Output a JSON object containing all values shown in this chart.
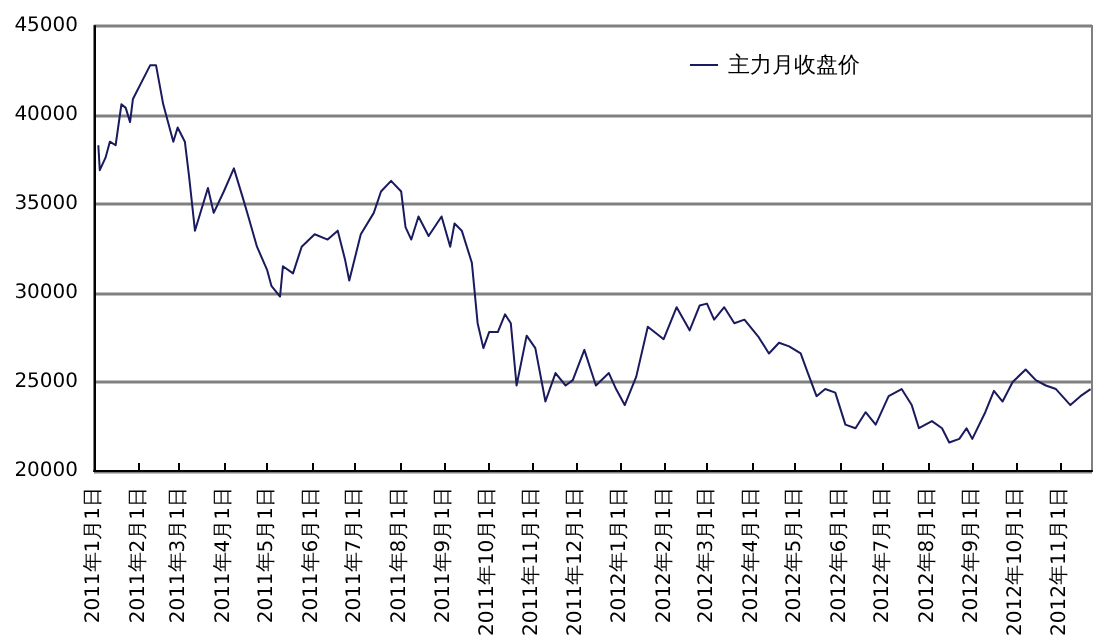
{
  "chart_data": {
    "type": "line",
    "legend": "top right",
    "grid": "y",
    "marker": "none",
    "line_style": "solid",
    "xlim": [
      "2011-01-01",
      "2012-11-23"
    ],
    "ylim": [
      20000,
      45000
    ],
    "yticks": [
      20000,
      25000,
      30000,
      35000,
      40000,
      45000
    ],
    "xticks": [
      {
        "value": "2011-01-01",
        "label": "2011年1月1日"
      },
      {
        "value": "2011-02-01",
        "label": "2011年2月1日"
      },
      {
        "value": "2011-03-01",
        "label": "2011年3月1日"
      },
      {
        "value": "2011-04-01",
        "label": "2011年4月1日"
      },
      {
        "value": "2011-05-01",
        "label": "2011年5月1日"
      },
      {
        "value": "2011-06-01",
        "label": "2011年6月1日"
      },
      {
        "value": "2011-07-01",
        "label": "2011年7月1日"
      },
      {
        "value": "2011-08-01",
        "label": "2011年8月1日"
      },
      {
        "value": "2011-09-01",
        "label": "2011年9月1日"
      },
      {
        "value": "2011-10-01",
        "label": "2011年10月1日"
      },
      {
        "value": "2011-11-01",
        "label": "2011年11月1日"
      },
      {
        "value": "2011-12-01",
        "label": "2011年12月1日"
      },
      {
        "value": "2012-01-01",
        "label": "2012年1月1日"
      },
      {
        "value": "2012-02-01",
        "label": "2012年2月1日"
      },
      {
        "value": "2012-03-01",
        "label": "2012年3月1日"
      },
      {
        "value": "2012-04-01",
        "label": "2012年4月1日"
      },
      {
        "value": "2012-05-01",
        "label": "2012年5月1日"
      },
      {
        "value": "2012-06-01",
        "label": "2012年6月1日"
      },
      {
        "value": "2012-07-01",
        "label": "2012年7月1日"
      },
      {
        "value": "2012-08-01",
        "label": "2012年8月1日"
      },
      {
        "value": "2012-09-01",
        "label": "2012年9月1日"
      },
      {
        "value": "2012-10-01",
        "label": "2012年10月1日"
      },
      {
        "value": "2012-11-01",
        "label": "2012年11月1日"
      }
    ],
    "x": [
      "2011-01-04",
      "2011-01-05",
      "2011-01-09",
      "2011-01-12",
      "2011-01-16",
      "2011-01-20",
      "2011-01-23",
      "2011-01-26",
      "2011-01-28",
      "2011-02-09",
      "2011-02-13",
      "2011-02-18",
      "2011-02-25",
      "2011-02-28",
      "2011-03-05",
      "2011-03-08",
      "2011-03-12",
      "2011-03-21",
      "2011-03-25",
      "2011-04-01",
      "2011-04-08",
      "2011-04-14",
      "2011-04-18",
      "2011-04-24",
      "2011-05-01",
      "2011-05-04",
      "2011-05-10",
      "2011-05-12",
      "2011-05-19",
      "2011-05-25",
      "2011-06-03",
      "2011-06-12",
      "2011-06-19",
      "2011-06-24",
      "2011-06-27",
      "2011-07-05",
      "2011-07-14",
      "2011-07-19",
      "2011-07-26",
      "2011-08-02",
      "2011-08-05",
      "2011-08-09",
      "2011-08-14",
      "2011-08-21",
      "2011-08-30",
      "2011-09-05",
      "2011-09-08",
      "2011-09-13",
      "2011-09-20",
      "2011-09-24",
      "2011-09-28",
      "2011-10-02",
      "2011-10-08",
      "2011-10-13",
      "2011-10-17",
      "2011-10-21",
      "2011-10-28",
      "2011-11-03",
      "2011-11-10",
      "2011-11-17",
      "2011-11-24",
      "2011-11-29",
      "2011-12-07",
      "2011-12-15",
      "2011-12-24",
      "2011-12-29",
      "2012-01-04",
      "2012-01-12",
      "2012-01-20",
      "2012-01-31",
      "2012-02-09",
      "2012-02-18",
      "2012-02-25",
      "2012-03-01",
      "2012-03-06",
      "2012-03-13",
      "2012-03-20",
      "2012-03-27",
      "2012-04-06",
      "2012-04-13",
      "2012-04-20",
      "2012-04-27",
      "2012-05-05",
      "2012-05-10",
      "2012-05-16",
      "2012-05-22",
      "2012-05-29",
      "2012-06-05",
      "2012-06-12",
      "2012-06-19",
      "2012-06-26",
      "2012-07-05",
      "2012-07-14",
      "2012-07-21",
      "2012-07-26",
      "2012-08-04",
      "2012-08-11",
      "2012-08-16",
      "2012-08-23",
      "2012-08-28",
      "2012-09-01",
      "2012-09-10",
      "2012-09-16",
      "2012-09-22",
      "2012-09-29",
      "2012-10-08",
      "2012-10-15",
      "2012-10-22",
      "2012-10-29",
      "2012-11-08",
      "2012-11-15",
      "2012-11-22"
    ],
    "series": [
      {
        "name": "主力月收盘价",
        "color": "#1a1a5e",
        "values": [
          38300,
          36900,
          37600,
          38500,
          38300,
          40600,
          40400,
          39600,
          40900,
          42800,
          42800,
          40600,
          38500,
          39300,
          38500,
          36500,
          33500,
          35900,
          34500,
          35700,
          37000,
          35400,
          34300,
          32600,
          31300,
          30400,
          29800,
          31500,
          31100,
          32600,
          33300,
          33000,
          33500,
          31900,
          30700,
          33300,
          34500,
          35700,
          36300,
          35700,
          33700,
          33000,
          34300,
          33200,
          34300,
          32600,
          33900,
          33500,
          31700,
          28300,
          26900,
          27800,
          27800,
          28800,
          28300,
          24800,
          27600,
          26900,
          23900,
          25500,
          24800,
          25100,
          26800,
          24800,
          25500,
          24600,
          23700,
          25300,
          28100,
          27400,
          29200,
          27900,
          29300,
          29400,
          28500,
          29200,
          28300,
          28500,
          27500,
          26600,
          27200,
          27000,
          26600,
          25500,
          24200,
          24600,
          24400,
          22600,
          22400,
          23300,
          22600,
          24200,
          24600,
          23700,
          22400,
          22800,
          22400,
          21600,
          21800,
          22400,
          21800,
          23300,
          24500,
          23900,
          25000,
          25700,
          25100,
          24800,
          24600,
          23700,
          24200,
          24600
        ]
      }
    ]
  }
}
